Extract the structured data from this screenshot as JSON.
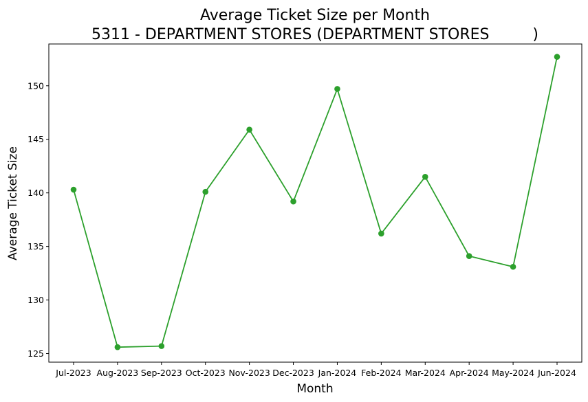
{
  "chart_data": {
    "type": "line",
    "title": [
      "Average Ticket Size per Month",
      "5311 - DEPARTMENT STORES (DEPARTMENT STORES         )"
    ],
    "xlabel": "Month",
    "ylabel": "Average Ticket Size",
    "categories": [
      "Jul-2023",
      "Aug-2023",
      "Sep-2023",
      "Oct-2023",
      "Nov-2023",
      "Dec-2023",
      "Jan-2024",
      "Feb-2024",
      "Mar-2024",
      "Apr-2024",
      "May-2024",
      "Jun-2024"
    ],
    "series": [
      {
        "values": [
          140.3,
          125.6,
          125.7,
          140.1,
          145.9,
          139.2,
          149.7,
          136.2,
          141.5,
          134.1,
          133.1,
          152.7
        ],
        "color": "#2ca02c",
        "marker": "circle"
      }
    ],
    "yticks": [
      125,
      130,
      135,
      140,
      145,
      150
    ],
    "ylim": [
      124.2,
      153.9
    ],
    "grid": false,
    "legend": "none"
  }
}
